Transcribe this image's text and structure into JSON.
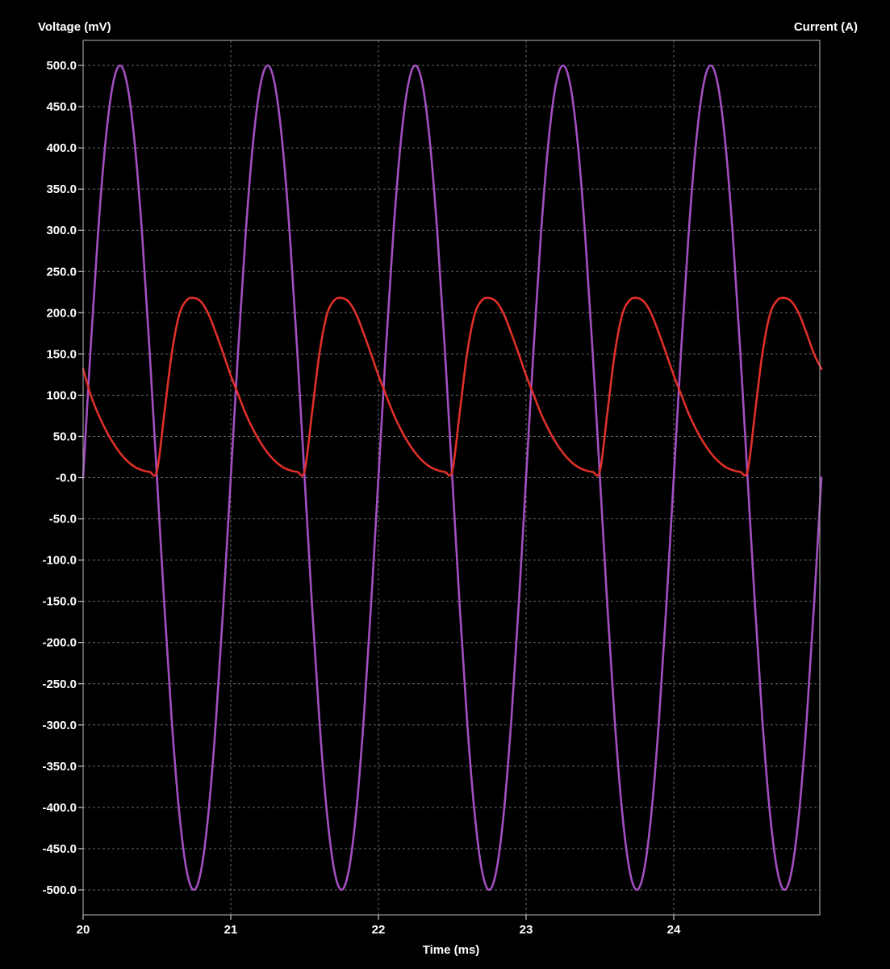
{
  "chart_data": {
    "type": "line",
    "xlabel": "Time (ms)",
    "ylabel": "Voltage (mV)",
    "y2label": "Current (A)",
    "xlim": [
      20,
      25
    ],
    "ylim": [
      -500,
      500
    ],
    "x_ticks": [
      20,
      21,
      22,
      23,
      24
    ],
    "x_tick_labels": [
      "20",
      "21",
      "22",
      "23",
      "24"
    ],
    "y_ticks": [
      500,
      450,
      400,
      350,
      300,
      250,
      200,
      150,
      100,
      50,
      0,
      -50,
      -100,
      -150,
      -200,
      -250,
      -300,
      -350,
      -400,
      -450,
      -500
    ],
    "y_tick_labels": [
      "500.0",
      "450.0",
      "400.0",
      "350.0",
      "300.0",
      "250.0",
      "200.0",
      "150.0",
      "100.0",
      "50.0",
      "-0.0",
      "-50.0",
      "-100.0",
      "-150.0",
      "-200.0",
      "-250.0",
      "-300.0",
      "-350.0",
      "-400.0",
      "-450.0",
      "-500.0"
    ],
    "grid": true,
    "series": [
      {
        "color": "#a24fc0",
        "x": [
          20.0,
          20.05,
          20.1,
          20.15,
          20.2,
          20.25,
          20.3,
          20.35,
          20.4,
          20.45,
          20.5,
          20.55,
          20.6,
          20.65,
          20.7,
          20.75,
          20.8,
          20.85,
          20.9,
          20.95,
          21.0,
          21.05,
          21.1,
          21.15,
          21.2,
          21.25,
          21.3,
          21.35,
          21.4,
          21.45,
          21.5,
          21.55,
          21.6,
          21.65,
          21.7,
          21.75,
          21.8,
          21.85,
          21.9,
          21.95,
          22.0,
          22.05,
          22.1,
          22.15,
          22.2,
          22.25,
          22.3,
          22.35,
          22.4,
          22.45,
          22.5,
          22.55,
          22.6,
          22.65,
          22.7,
          22.75,
          22.8,
          22.85,
          22.9,
          22.95,
          23.0,
          23.05,
          23.1,
          23.15,
          23.2,
          23.25,
          23.3,
          23.35,
          23.4,
          23.45,
          23.5,
          23.55,
          23.6,
          23.65,
          23.7,
          23.75,
          23.8,
          23.85,
          23.9,
          23.95,
          24.0,
          24.05,
          24.1,
          24.15,
          24.2,
          24.25,
          24.3,
          24.35,
          24.4,
          24.45,
          24.5,
          24.55,
          24.6,
          24.65,
          24.7,
          24.75,
          24.8,
          24.85,
          24.9,
          24.95,
          25.0
        ],
        "y": [
          0,
          154.5,
          293.9,
          404.5,
          475.5,
          500,
          475.5,
          404.5,
          293.9,
          154.5,
          0,
          -154.5,
          -293.9,
          -404.5,
          -475.5,
          -500,
          -475.5,
          -404.5,
          -293.9,
          -154.5,
          0,
          154.5,
          293.9,
          404.5,
          475.5,
          500,
          475.5,
          404.5,
          293.9,
          154.5,
          0,
          -154.5,
          -293.9,
          -404.5,
          -475.5,
          -500,
          -475.5,
          -404.5,
          -293.9,
          -154.5,
          0,
          154.5,
          293.9,
          404.5,
          475.5,
          500,
          475.5,
          404.5,
          293.9,
          154.5,
          0,
          -154.5,
          -293.9,
          -404.5,
          -475.5,
          -500,
          -475.5,
          -404.5,
          -293.9,
          -154.5,
          0,
          154.5,
          293.9,
          404.5,
          475.5,
          500,
          475.5,
          404.5,
          293.9,
          154.5,
          0,
          -154.5,
          -293.9,
          -404.5,
          -475.5,
          -500,
          -475.5,
          -404.5,
          -293.9,
          -154.5,
          0,
          154.5,
          293.9,
          404.5,
          475.5,
          500,
          475.5,
          404.5,
          293.9,
          154.5,
          0,
          -154.5,
          -293.9,
          -404.5,
          -475.5,
          -500,
          -475.5,
          -404.5,
          -293.9,
          -154.5,
          0
        ]
      },
      {
        "color": "#e0302a",
        "x": [
          20.0,
          20.05,
          20.1,
          20.15,
          20.2,
          20.25,
          20.3,
          20.35,
          20.4,
          20.45,
          20.5,
          20.55,
          20.6,
          20.65,
          20.7,
          20.75,
          20.8,
          20.85,
          20.9,
          20.95,
          21.0,
          21.05,
          21.1,
          21.15,
          21.2,
          21.25,
          21.3,
          21.35,
          21.4,
          21.45,
          21.5,
          21.55,
          21.6,
          21.65,
          21.7,
          21.75,
          21.8,
          21.85,
          21.9,
          21.95,
          22.0,
          22.05,
          22.1,
          22.15,
          22.2,
          22.25,
          22.3,
          22.35,
          22.4,
          22.45,
          22.5,
          22.55,
          22.6,
          22.65,
          22.7,
          22.75,
          22.8,
          22.85,
          22.9,
          22.95,
          23.0,
          23.05,
          23.1,
          23.15,
          23.2,
          23.25,
          23.3,
          23.35,
          23.4,
          23.45,
          23.5,
          23.55,
          23.6,
          23.65,
          23.7,
          23.75,
          23.8,
          23.85,
          23.9,
          23.95,
          24.0,
          24.05,
          24.1,
          24.15,
          24.2,
          24.25,
          24.3,
          24.35,
          24.4,
          24.45,
          24.5,
          24.55,
          24.6,
          24.65,
          24.7,
          24.75,
          24.8,
          24.85,
          24.9,
          24.95,
          25.0
        ],
        "y": [
          132,
          101,
          78,
          59,
          43,
          30,
          20,
          13,
          9,
          7,
          8,
          78,
          150,
          197,
          215,
          218,
          213,
          198,
          175,
          150,
          124,
          101,
          78,
          59,
          43,
          30,
          20,
          13,
          9,
          7,
          8,
          78,
          150,
          197,
          215,
          218,
          213,
          198,
          175,
          150,
          124,
          101,
          78,
          59,
          43,
          30,
          20,
          13,
          9,
          7,
          8,
          78,
          150,
          197,
          215,
          218,
          213,
          198,
          175,
          150,
          124,
          101,
          78,
          59,
          43,
          30,
          20,
          13,
          9,
          7,
          8,
          78,
          150,
          197,
          215,
          218,
          213,
          198,
          175,
          150,
          124,
          101,
          78,
          59,
          43,
          30,
          20,
          13,
          9,
          7,
          8,
          78,
          150,
          197,
          215,
          218,
          213,
          198,
          175,
          150,
          132
        ]
      }
    ]
  }
}
